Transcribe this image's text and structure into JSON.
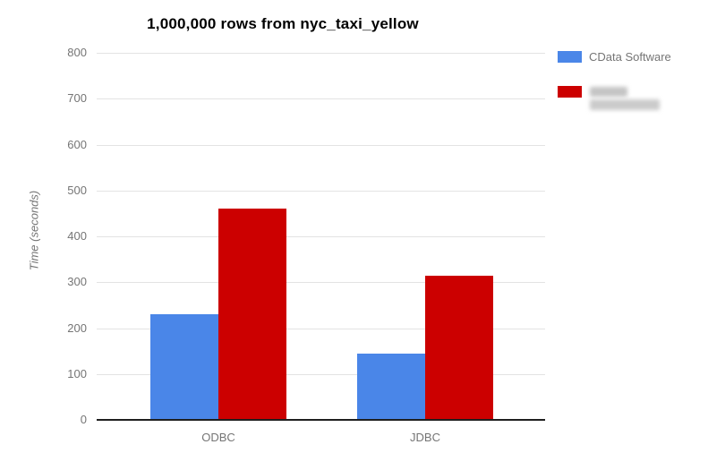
{
  "chart_data": {
    "type": "bar",
    "title": "1,000,000 rows from nyc_taxi_yellow",
    "xlabel": "",
    "ylabel": "Time (seconds)",
    "categories": [
      "ODBC",
      "JDBC"
    ],
    "series": [
      {
        "name": "CData Software",
        "redacted": false,
        "color": "#4a86e8",
        "values": [
          230,
          145
        ]
      },
      {
        "name": "",
        "redacted": true,
        "color": "#cc0000",
        "values": [
          460,
          315
        ]
      }
    ],
    "ylim": [
      0,
      800
    ],
    "ytick_interval": 100,
    "ytick_labels": [
      "0",
      "100",
      "200",
      "300",
      "400",
      "500",
      "600",
      "700",
      "800"
    ],
    "grid": true,
    "legend_position": "right",
    "legend": {
      "items": [
        {
          "label": "CData Software",
          "redacted": false,
          "color": "#4a86e8"
        },
        {
          "label": "",
          "redacted": true,
          "color": "#cc0000"
        }
      ]
    }
  }
}
